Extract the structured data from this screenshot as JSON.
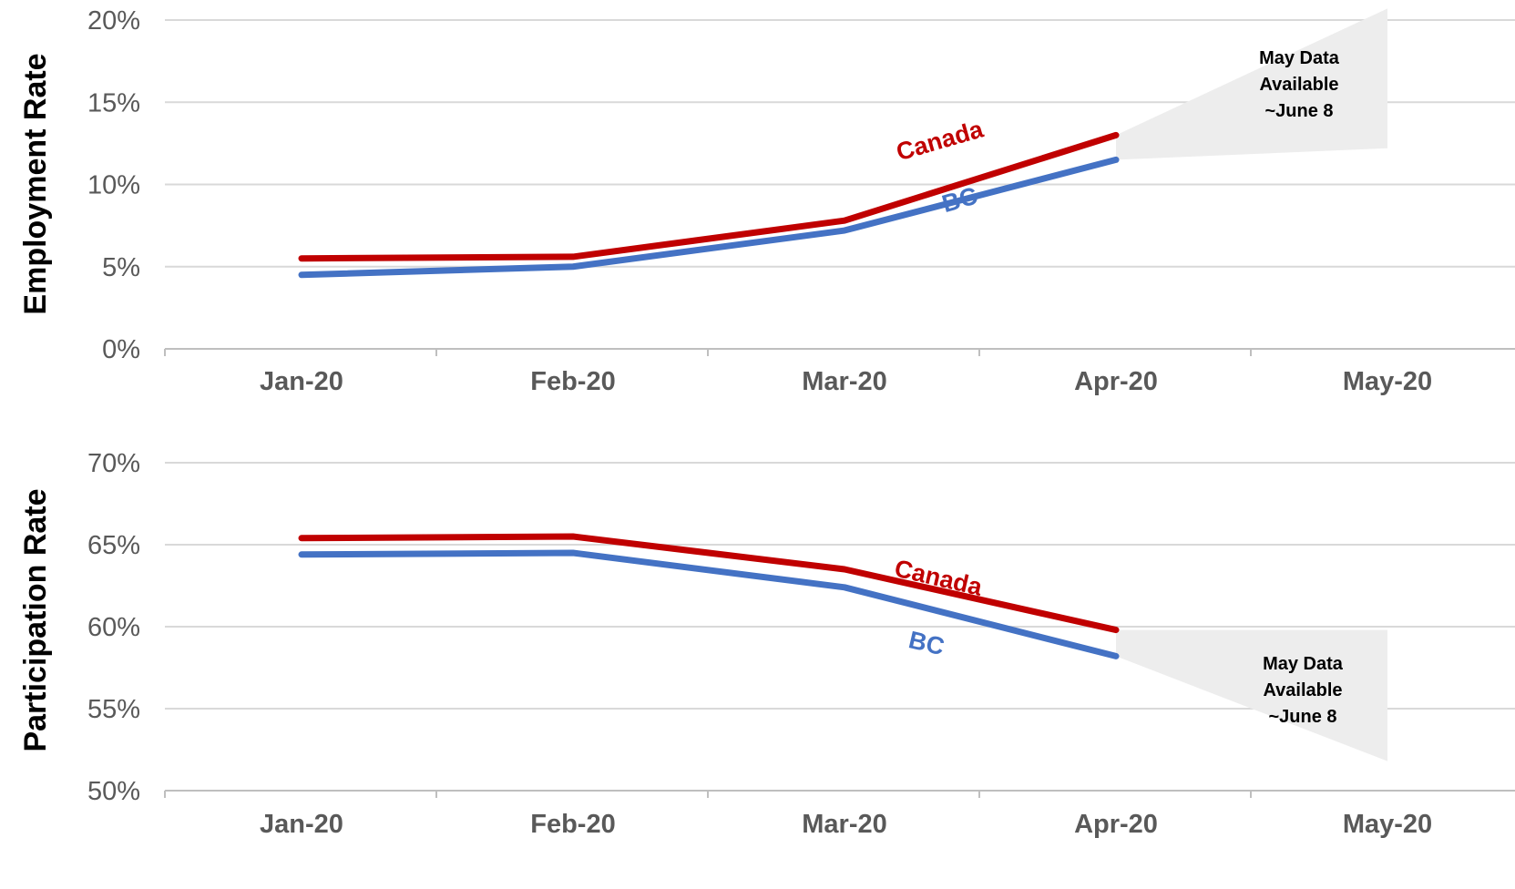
{
  "chart_data": [
    {
      "type": "line",
      "title": "",
      "ylabel": "Employment Rate",
      "xlabel": "",
      "categories": [
        "Jan-20",
        "Feb-20",
        "Mar-20",
        "Apr-20",
        "May-20"
      ],
      "yticks": [
        "0%",
        "5%",
        "10%",
        "15%",
        "20%"
      ],
      "ylim": [
        0,
        20
      ],
      "grid": true,
      "series": [
        {
          "name": "Canada",
          "color": "#C00000",
          "values": [
            5.5,
            5.6,
            7.8,
            13.0,
            null
          ]
        },
        {
          "name": "BC",
          "color": "#4472C4",
          "values": [
            4.5,
            5.0,
            7.2,
            11.5,
            null
          ]
        }
      ],
      "forecast_region": {
        "color": "#EDEDED",
        "from_category": "Apr-20",
        "to_category": "May-20",
        "start_range": [
          11.5,
          13.0
        ],
        "end_range": [
          12.2,
          20.7
        ]
      },
      "annotation": [
        "May Data",
        "Available",
        "~June 8"
      ]
    },
    {
      "type": "line",
      "title": "",
      "ylabel": "Participation Rate",
      "xlabel": "",
      "categories": [
        "Jan-20",
        "Feb-20",
        "Mar-20",
        "Apr-20",
        "May-20"
      ],
      "yticks": [
        "50%",
        "55%",
        "60%",
        "65%",
        "70%"
      ],
      "ylim": [
        50,
        70
      ],
      "grid": true,
      "series": [
        {
          "name": "Canada",
          "color": "#C00000",
          "values": [
            65.4,
            65.5,
            63.5,
            59.8,
            null
          ]
        },
        {
          "name": "BC",
          "color": "#4472C4",
          "values": [
            64.4,
            64.5,
            62.4,
            58.2,
            null
          ]
        }
      ],
      "forecast_region": {
        "color": "#EDEDED",
        "from_category": "Apr-20",
        "to_category": "May-20",
        "start_range": [
          58.2,
          59.8
        ],
        "end_range": [
          51.8,
          59.8
        ]
      },
      "annotation": [
        "May Data",
        "Available",
        "~June 8"
      ]
    }
  ]
}
